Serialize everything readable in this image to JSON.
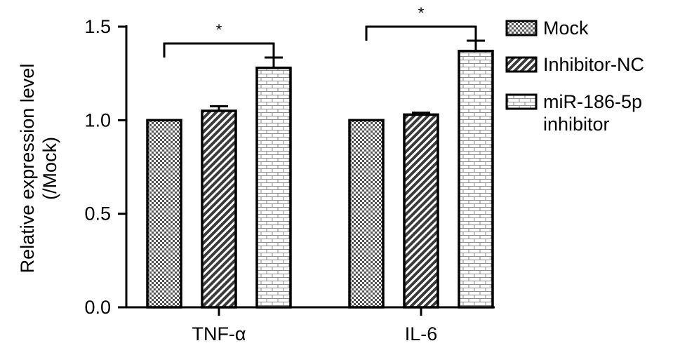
{
  "chart_data": {
    "type": "bar",
    "ylabel": "Relative expression level\n(/Mock)",
    "xlabel": "",
    "ylim": [
      0,
      1.5
    ],
    "yticks": [
      "0.0",
      "0.5",
      "1.0",
      "1.5"
    ],
    "categories": [
      "TNF-α",
      "IL-6"
    ],
    "series": [
      {
        "name": "Mock",
        "values": [
          1.0,
          1.0
        ],
        "errors": [
          0,
          0
        ],
        "pattern": "checker"
      },
      {
        "name": "Inhibitor-NC",
        "values": [
          1.05,
          1.03
        ],
        "errors": [
          0.025,
          0.01
        ],
        "pattern": "diagonal"
      },
      {
        "name": "miR-186-5p\ninhibitor",
        "values": [
          1.28,
          1.37
        ],
        "errors": [
          0.055,
          0.055
        ],
        "pattern": "brick"
      }
    ],
    "significance": [
      {
        "category": "TNF-α",
        "from": "Mock",
        "to": "miR-186-5p\ninhibitor",
        "label": "*"
      },
      {
        "category": "IL-6",
        "from": "Mock",
        "to": "miR-186-5p\ninhibitor",
        "label": "*"
      }
    ],
    "legend_position": "top-right",
    "grid": false
  }
}
